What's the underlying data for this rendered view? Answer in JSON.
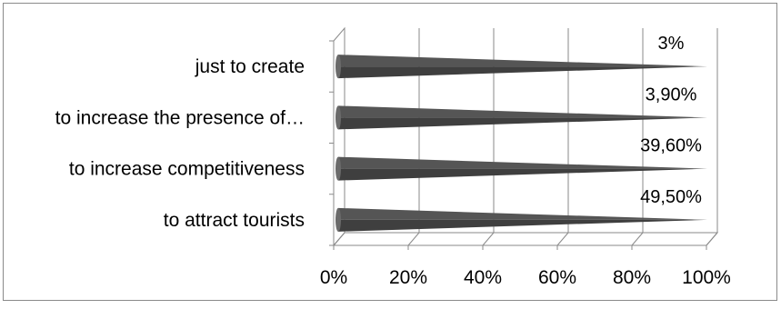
{
  "chart_data": {
    "type": "bar",
    "orientation": "horizontal",
    "style": "3d-cone",
    "categories": [
      "just to create",
      "to increase the presence of…",
      "to increase competitiveness",
      "to attract tourists"
    ],
    "values": [
      100,
      100,
      100,
      100
    ],
    "data_labels": [
      "3%",
      "3,90%",
      "39,60%",
      "49,50%"
    ],
    "x_ticks": [
      "0%",
      "20%",
      "40%",
      "60%",
      "80%",
      "100%"
    ],
    "xlim": [
      0,
      100
    ],
    "grid": true,
    "legend": "none",
    "bar_color": "#555555",
    "title": "",
    "xlabel": "",
    "ylabel": ""
  }
}
